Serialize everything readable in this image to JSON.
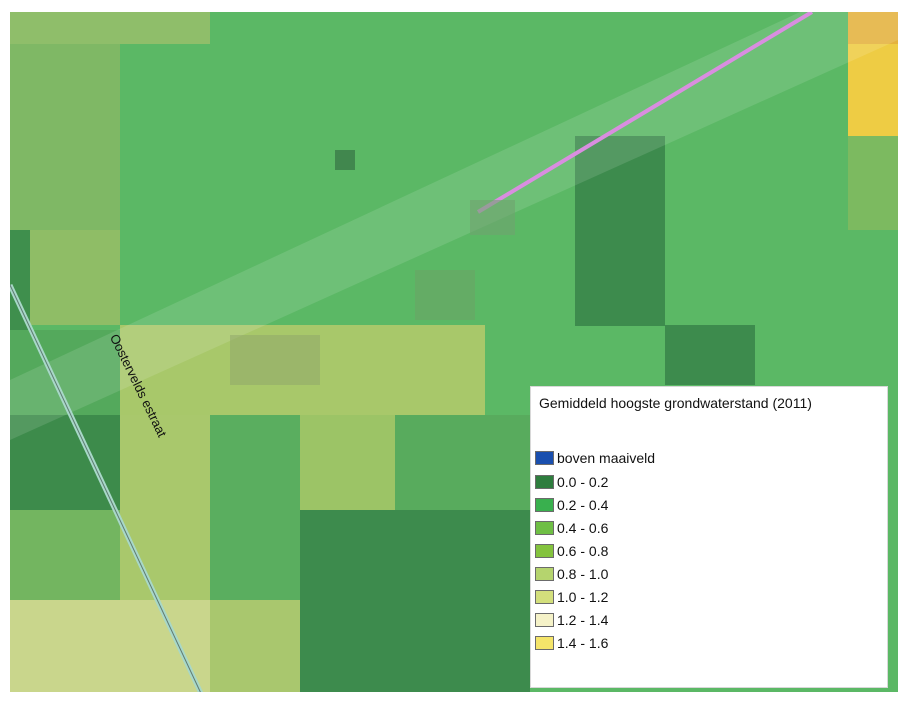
{
  "map": {
    "street_label": "Oostervelds estraat",
    "colors": {
      "base_green": "#5bb865",
      "dark_green": "#3a8e4a",
      "mid_green": "#4fa95a",
      "light_green": "#8fc46b",
      "yellow_green": "#b6cc6a",
      "pale_yellow": "#d9d98e",
      "orange": "#e8b640",
      "yellow": "#f0d040",
      "road": "#a8d8c8",
      "pipeline": "#d98ee0"
    }
  },
  "legend": {
    "title": "Gemiddeld hoogste grondwaterstand (2011)",
    "items": [
      {
        "label": "boven maaiveld",
        "color": "#1a4fae"
      },
      {
        "label": "0.0 - 0.2",
        "color": "#2e7d3e"
      },
      {
        "label": "0.2 - 0.4",
        "color": "#39b04e"
      },
      {
        "label": "0.4 - 0.6",
        "color": "#6fbf45"
      },
      {
        "label": "0.6 - 0.8",
        "color": "#84c33e"
      },
      {
        "label": "0.8 - 1.0",
        "color": "#b5d46e"
      },
      {
        "label": "1.0 - 1.2",
        "color": "#d3df7c"
      },
      {
        "label": "1.2 - 1.4",
        "color": "#f5f2c8"
      },
      {
        "label": "1.4 - 1.6",
        "color": "#f5e56a"
      }
    ]
  }
}
